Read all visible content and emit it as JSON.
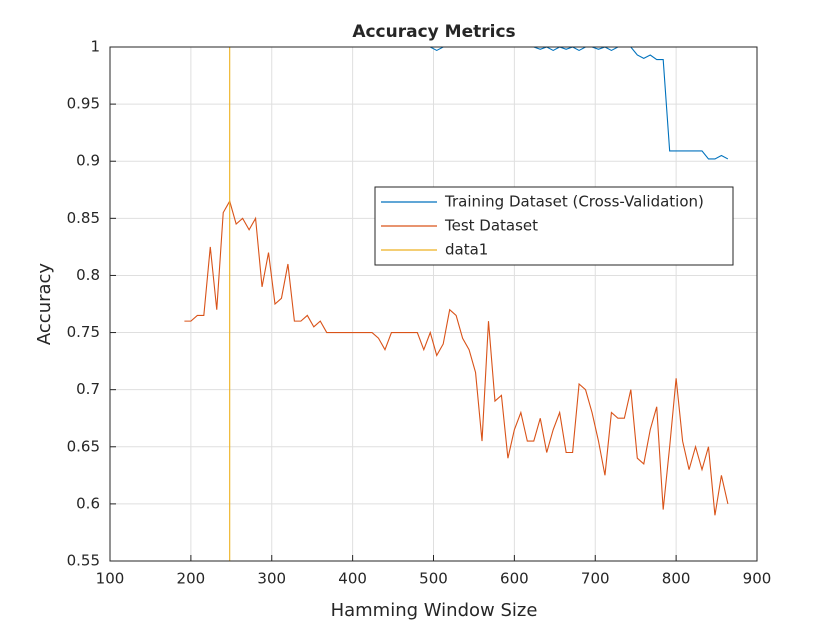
{
  "chart_data": {
    "type": "line",
    "title": "Accuracy Metrics",
    "x_label": "Hamming Window Size",
    "y_label": "Accuracy",
    "x": [
      192,
      200,
      208,
      216,
      224,
      232,
      240,
      248,
      256,
      264,
      272,
      280,
      288,
      296,
      304,
      312,
      320,
      328,
      336,
      344,
      352,
      360,
      368,
      376,
      384,
      392,
      400,
      408,
      416,
      424,
      432,
      440,
      448,
      456,
      464,
      472,
      480,
      488,
      496,
      504,
      512,
      520,
      528,
      536,
      544,
      552,
      560,
      568,
      576,
      584,
      592,
      600,
      608,
      616,
      624,
      632,
      640,
      648,
      656,
      664,
      672,
      680,
      688,
      696,
      704,
      712,
      720,
      728,
      736,
      744,
      752,
      760,
      768,
      776,
      784,
      792,
      800,
      808,
      816,
      824,
      832,
      840,
      848,
      856,
      864
    ],
    "series": [
      {
        "name": "Training Dataset (Cross-Validation)",
        "color": "#0072BD",
        "values": [
          1,
          1,
          1,
          1,
          1,
          1,
          1,
          1,
          1,
          1,
          1,
          1,
          1,
          1,
          1,
          1,
          1,
          1,
          1,
          1,
          1,
          1,
          1,
          1,
          1,
          1,
          1,
          1,
          1,
          1,
          1,
          1,
          1,
          1,
          1,
          1,
          1,
          1,
          1,
          0.997,
          1,
          1,
          1,
          1,
          1,
          1,
          1,
          1,
          1,
          1,
          1,
          1,
          1,
          1,
          1,
          0.998,
          1,
          0.997,
          1,
          0.998,
          1,
          0.997,
          1,
          1,
          0.998,
          1,
          0.997,
          1,
          1,
          1,
          0.993,
          0.99,
          0.993,
          0.989,
          0.989,
          0.909,
          0.909,
          0.909,
          0.909,
          0.909,
          0.909,
          0.902,
          0.902,
          0.905,
          0.902
        ]
      },
      {
        "name": "Test Dataset",
        "color": "#D95319",
        "values": [
          0.76,
          0.76,
          0.765,
          0.765,
          0.825,
          0.77,
          0.855,
          0.865,
          0.845,
          0.85,
          0.84,
          0.85,
          0.79,
          0.82,
          0.775,
          0.78,
          0.81,
          0.76,
          0.76,
          0.765,
          0.755,
          0.76,
          0.75,
          0.75,
          0.75,
          0.75,
          0.75,
          0.75,
          0.75,
          0.75,
          0.745,
          0.735,
          0.75,
          0.75,
          0.75,
          0.75,
          0.75,
          0.735,
          0.75,
          0.73,
          0.74,
          0.77,
          0.765,
          0.745,
          0.735,
          0.715,
          0.655,
          0.76,
          0.69,
          0.695,
          0.64,
          0.665,
          0.68,
          0.655,
          0.655,
          0.675,
          0.645,
          0.665,
          0.68,
          0.645,
          0.645,
          0.705,
          0.7,
          0.68,
          0.655,
          0.625,
          0.68,
          0.675,
          0.675,
          0.7,
          0.64,
          0.635,
          0.665,
          0.685,
          0.595,
          0.65,
          0.71,
          0.655,
          0.63,
          0.65,
          0.63,
          0.65,
          0.59,
          0.625,
          0.6
        ]
      },
      {
        "name": "data1",
        "color": "#EDB120",
        "x": [
          248,
          248
        ],
        "values": [
          0.55,
          1
        ]
      }
    ],
    "xlim": [
      100,
      900
    ],
    "xticks": [
      100,
      200,
      300,
      400,
      500,
      600,
      700,
      800,
      900
    ],
    "ylim": [
      0.55,
      1
    ],
    "yticks": [
      0.55,
      0.6,
      0.65,
      0.7,
      0.75,
      0.8,
      0.85,
      0.9,
      0.95,
      1
    ],
    "grid": true,
    "legend_position": "east"
  }
}
